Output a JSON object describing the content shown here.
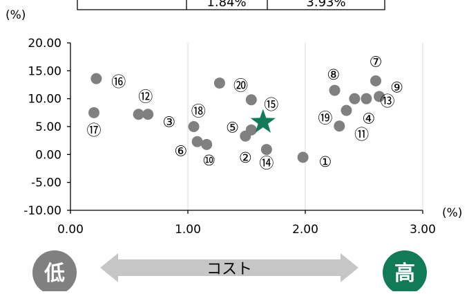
{
  "top_table": {
    "cells": [
      "",
      "1.84%",
      "3.93%"
    ]
  },
  "chart_data": {
    "type": "scatter",
    "x_unit": "(%)",
    "y_unit": "(%)",
    "xlim": [
      0.0,
      3.0
    ],
    "ylim": [
      -10.0,
      20.0
    ],
    "x_ticks": [
      "0.00",
      "1.00",
      "2.00",
      "3.00"
    ],
    "y_ticks": [
      "20.00",
      "15.00",
      "10.00",
      "5.00",
      "0.00",
      "-5.00",
      "-10.00"
    ],
    "x_tick_values": [
      0,
      1,
      2,
      3
    ],
    "y_tick_values": [
      20,
      15,
      10,
      5,
      0,
      -5,
      -10
    ],
    "grid": {
      "vertical": true,
      "horizontal": false
    },
    "point_color": "#808080",
    "highlight_color": "#117a57",
    "points": [
      {
        "x": 0.2,
        "y": 7.5
      },
      {
        "x": 0.22,
        "y": 13.6
      },
      {
        "x": 0.58,
        "y": 7.2
      },
      {
        "x": 0.66,
        "y": 7.2
      },
      {
        "x": 1.05,
        "y": 5.0
      },
      {
        "x": 1.08,
        "y": 2.3
      },
      {
        "x": 1.16,
        "y": 1.8
      },
      {
        "x": 1.27,
        "y": 12.8
      },
      {
        "x": 1.49,
        "y": 3.3
      },
      {
        "x": 1.54,
        "y": 9.8
      },
      {
        "x": 1.54,
        "y": 4.4
      },
      {
        "x": 1.67,
        "y": 0.9
      },
      {
        "x": 1.98,
        "y": -0.5
      },
      {
        "x": 2.25,
        "y": 11.5
      },
      {
        "x": 2.29,
        "y": 5.1
      },
      {
        "x": 2.35,
        "y": 7.9
      },
      {
        "x": 2.42,
        "y": 10.0
      },
      {
        "x": 2.52,
        "y": 10.0
      },
      {
        "x": 2.6,
        "y": 13.2
      },
      {
        "x": 2.63,
        "y": 10.4
      }
    ],
    "highlight": {
      "x": 1.64,
      "y": 5.8
    },
    "labels": [
      {
        "text": "①",
        "x": 2.17,
        "y": -1.3
      },
      {
        "text": "②",
        "x": 1.49,
        "y": -0.6
      },
      {
        "text": "③",
        "x": 0.84,
        "y": 5.8
      },
      {
        "text": "④",
        "x": 2.54,
        "y": 6.4
      },
      {
        "text": "⑤",
        "x": 1.38,
        "y": 4.8
      },
      {
        "text": "⑥",
        "x": 0.94,
        "y": 0.6
      },
      {
        "text": "⑦",
        "x": 2.6,
        "y": 16.6
      },
      {
        "text": "⑧",
        "x": 2.24,
        "y": 14.3
      },
      {
        "text": "⑨",
        "x": 2.78,
        "y": 12.0
      },
      {
        "text": "⑩",
        "x": 1.18,
        "y": -1.1
      },
      {
        "text": "⑪",
        "x": 2.48,
        "y": 3.6
      },
      {
        "text": "⑫",
        "x": 0.64,
        "y": 10.3
      },
      {
        "text": "⑬",
        "x": 2.7,
        "y": 9.5
      },
      {
        "text": "⑭",
        "x": 1.67,
        "y": -1.6
      },
      {
        "text": "⑮",
        "x": 1.71,
        "y": 8.9
      },
      {
        "text": "⑯",
        "x": 0.41,
        "y": 13.0
      },
      {
        "text": "⑰",
        "x": 0.2,
        "y": 4.3
      },
      {
        "text": "⑱",
        "x": 1.09,
        "y": 7.7
      },
      {
        "text": "⑲",
        "x": 2.17,
        "y": 6.5
      },
      {
        "text": "⑳",
        "x": 1.45,
        "y": 12.3
      }
    ]
  },
  "cost_bar": {
    "low": "低",
    "label": "コスト",
    "high": "高",
    "low_color": "#808080",
    "high_color": "#117a57",
    "arrow_color": "#c6c6c6"
  }
}
